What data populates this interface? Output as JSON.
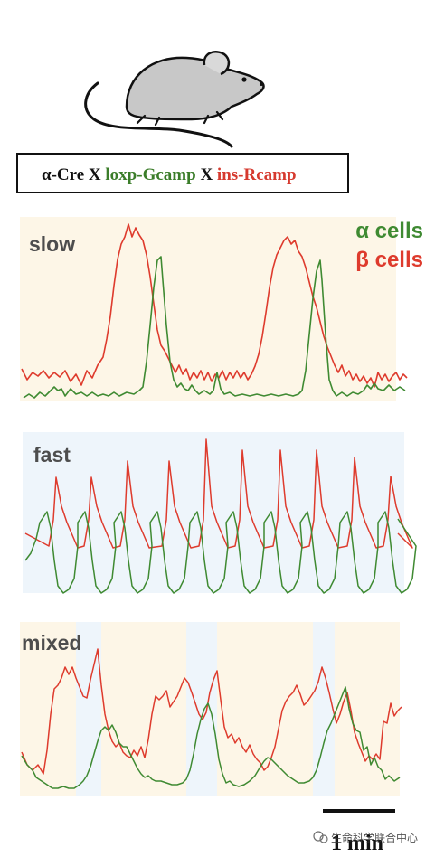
{
  "genotype": {
    "part1": "α-Cre X ",
    "part2": "loxp-Gcamp",
    "part3": " X ",
    "part4": "ins-Rcamp",
    "color_dark": "#111111",
    "color_green": "#3b7d2a",
    "color_red": "#d63a2f"
  },
  "legend": {
    "alpha_label": "α cells",
    "beta_label": "β cells",
    "alpha_color": "#3f8a32",
    "beta_color": "#de3b2d"
  },
  "panels": [
    {
      "label": "slow",
      "background": "#fdf6e7"
    },
    {
      "label": "fast",
      "background": "#eef5fb"
    },
    {
      "label": "mixed",
      "background": "#fdf6e7",
      "band_color": "#eef5fb"
    }
  ],
  "scale_bar": {
    "label": "1 min"
  },
  "watermark": "生命科学联合中心"
}
